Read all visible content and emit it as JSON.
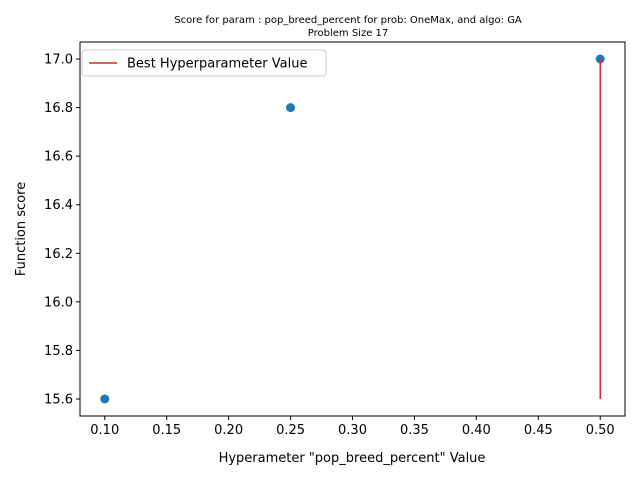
{
  "chart_data": {
    "type": "scatter",
    "title": "Score for param : pop_breed_percent for prob: OneMax, and algo: GA",
    "subtitle": "Problem Size 17",
    "xlabel": "Hyperameter \"pop_breed_percent\" Value",
    "ylabel": "Function score",
    "xlim": [
      0.08,
      0.52
    ],
    "ylim": [
      15.53,
      17.07
    ],
    "x_ticks": [
      0.1,
      0.15,
      0.2,
      0.25,
      0.3,
      0.35,
      0.4,
      0.45,
      0.5
    ],
    "x_tick_labels": [
      "0.10",
      "0.15",
      "0.20",
      "0.25",
      "0.30",
      "0.35",
      "0.40",
      "0.45",
      "0.50"
    ],
    "y_ticks": [
      15.6,
      15.8,
      16.0,
      16.2,
      16.4,
      16.6,
      16.8,
      17.0
    ],
    "y_tick_labels": [
      "15.6",
      "15.8",
      "16.0",
      "16.2",
      "16.4",
      "16.6",
      "16.8",
      "17.0"
    ],
    "grid": false,
    "legend_position": "top-left",
    "series": [
      {
        "kind": "scatter",
        "color": "#1f77b4",
        "x": [
          0.1,
          0.25,
          0.5
        ],
        "y": [
          15.6,
          16.8,
          17.0
        ]
      },
      {
        "kind": "vline",
        "name": "Best Hyperparameter Value",
        "color": "#d62728",
        "x": 0.5,
        "y_range": [
          15.6,
          17.0
        ]
      }
    ]
  }
}
